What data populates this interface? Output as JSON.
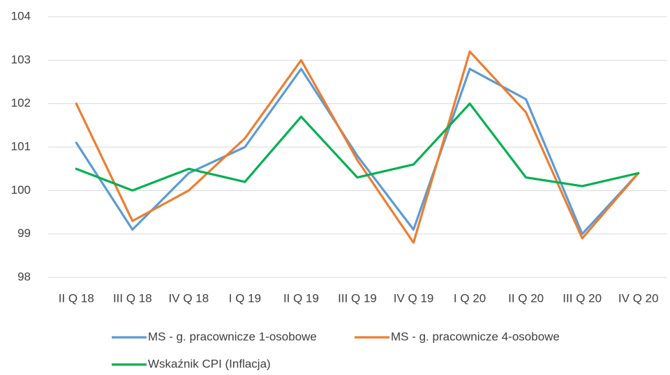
{
  "chart_data": {
    "type": "line",
    "categories": [
      "II Q 18",
      "III Q 18",
      "IV Q 18",
      "I Q 19",
      "II Q 19",
      "III Q 19",
      "IV Q 19",
      "I Q 20",
      "II Q 20",
      "III Q 20",
      "IV Q 20"
    ],
    "series": [
      {
        "name": "MS - g. pracownicze 1-osobowe",
        "color": "#5b9bd5",
        "values": [
          101.1,
          99.1,
          100.4,
          101.0,
          102.8,
          100.8,
          99.1,
          102.8,
          102.1,
          99.0,
          100.4
        ]
      },
      {
        "name": "MS - g. pracownicze 4-osobowe",
        "color": "#ed7d31",
        "values": [
          102.0,
          99.3,
          100.0,
          101.2,
          103.0,
          100.7,
          98.8,
          103.2,
          101.8,
          98.9,
          100.4
        ]
      },
      {
        "name": "Wskaźnik CPI (Inflacja)",
        "color": "#00b050",
        "values": [
          100.5,
          100.0,
          100.5,
          100.2,
          101.7,
          100.3,
          100.6,
          102.0,
          100.3,
          100.1,
          100.4
        ]
      }
    ],
    "ylim": [
      98,
      104
    ],
    "yticks": [
      98,
      99,
      100,
      101,
      102,
      103,
      104
    ],
    "grid": true
  }
}
